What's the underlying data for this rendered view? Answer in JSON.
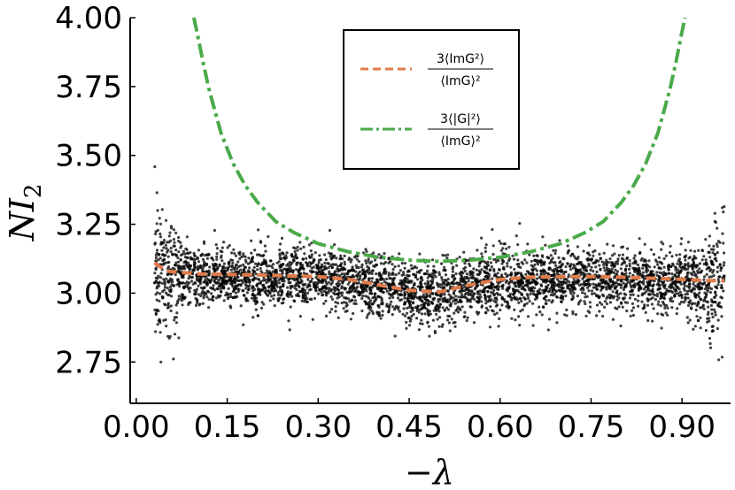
{
  "chart_data": {
    "type": "scatter",
    "xlabel": "−λ",
    "ylabel": "NI",
    "ylabel_subscript": "2",
    "xlim": [
      -0.01,
      0.98
    ],
    "ylim": [
      2.6,
      4.0
    ],
    "xticks": [
      0.0,
      0.15,
      0.3,
      0.45,
      0.6,
      0.75,
      0.9
    ],
    "xtick_labels": [
      "0.00",
      "0.15",
      "0.30",
      "0.45",
      "0.60",
      "0.75",
      "0.90"
    ],
    "yticks": [
      2.75,
      3.0,
      3.25,
      3.5,
      3.75,
      4.0
    ],
    "ytick_labels": [
      "2.75",
      "3.00",
      "3.25",
      "3.50",
      "3.75",
      "4.00"
    ],
    "grid": false,
    "legend_position": "top-center",
    "scatter": {
      "color": "#000000",
      "x_range": [
        0.03,
        0.97
      ],
      "y_center": 3.05,
      "y_spread_typical": [
        2.9,
        3.2
      ],
      "y_extremes": [
        2.75,
        3.58
      ]
    },
    "series": [
      {
        "name_numerator": "3⟨ImG²⟩",
        "name_denominator": "⟨ImG⟩²",
        "style": "dashed",
        "color": "#e07b4a",
        "x": [
          0.03,
          0.05,
          0.1,
          0.15,
          0.2,
          0.25,
          0.3,
          0.35,
          0.4,
          0.45,
          0.5,
          0.55,
          0.6,
          0.65,
          0.7,
          0.75,
          0.8,
          0.85,
          0.9,
          0.95,
          0.97
        ],
        "y": [
          3.11,
          3.08,
          3.07,
          3.068,
          3.066,
          3.063,
          3.06,
          3.05,
          3.03,
          3.01,
          3.005,
          3.03,
          3.05,
          3.058,
          3.06,
          3.06,
          3.058,
          3.054,
          3.05,
          3.045,
          3.045
        ]
      },
      {
        "name_numerator": "3⟨|G|²⟩",
        "name_denominator": "⟨ImG⟩²",
        "style": "dashdot",
        "color": "#4aaa4a",
        "x": [
          0.095,
          0.1,
          0.11,
          0.12,
          0.14,
          0.16,
          0.18,
          0.2,
          0.23,
          0.26,
          0.3,
          0.35,
          0.4,
          0.45,
          0.5,
          0.55,
          0.6,
          0.65,
          0.7,
          0.74,
          0.77,
          0.8,
          0.82,
          0.84,
          0.86,
          0.88,
          0.89,
          0.9,
          0.905
        ],
        "y": [
          4.0,
          3.95,
          3.84,
          3.74,
          3.58,
          3.47,
          3.39,
          3.33,
          3.26,
          3.22,
          3.18,
          3.15,
          3.13,
          3.12,
          3.115,
          3.12,
          3.13,
          3.15,
          3.18,
          3.22,
          3.26,
          3.33,
          3.39,
          3.47,
          3.58,
          3.74,
          3.84,
          3.95,
          4.0
        ]
      }
    ]
  }
}
